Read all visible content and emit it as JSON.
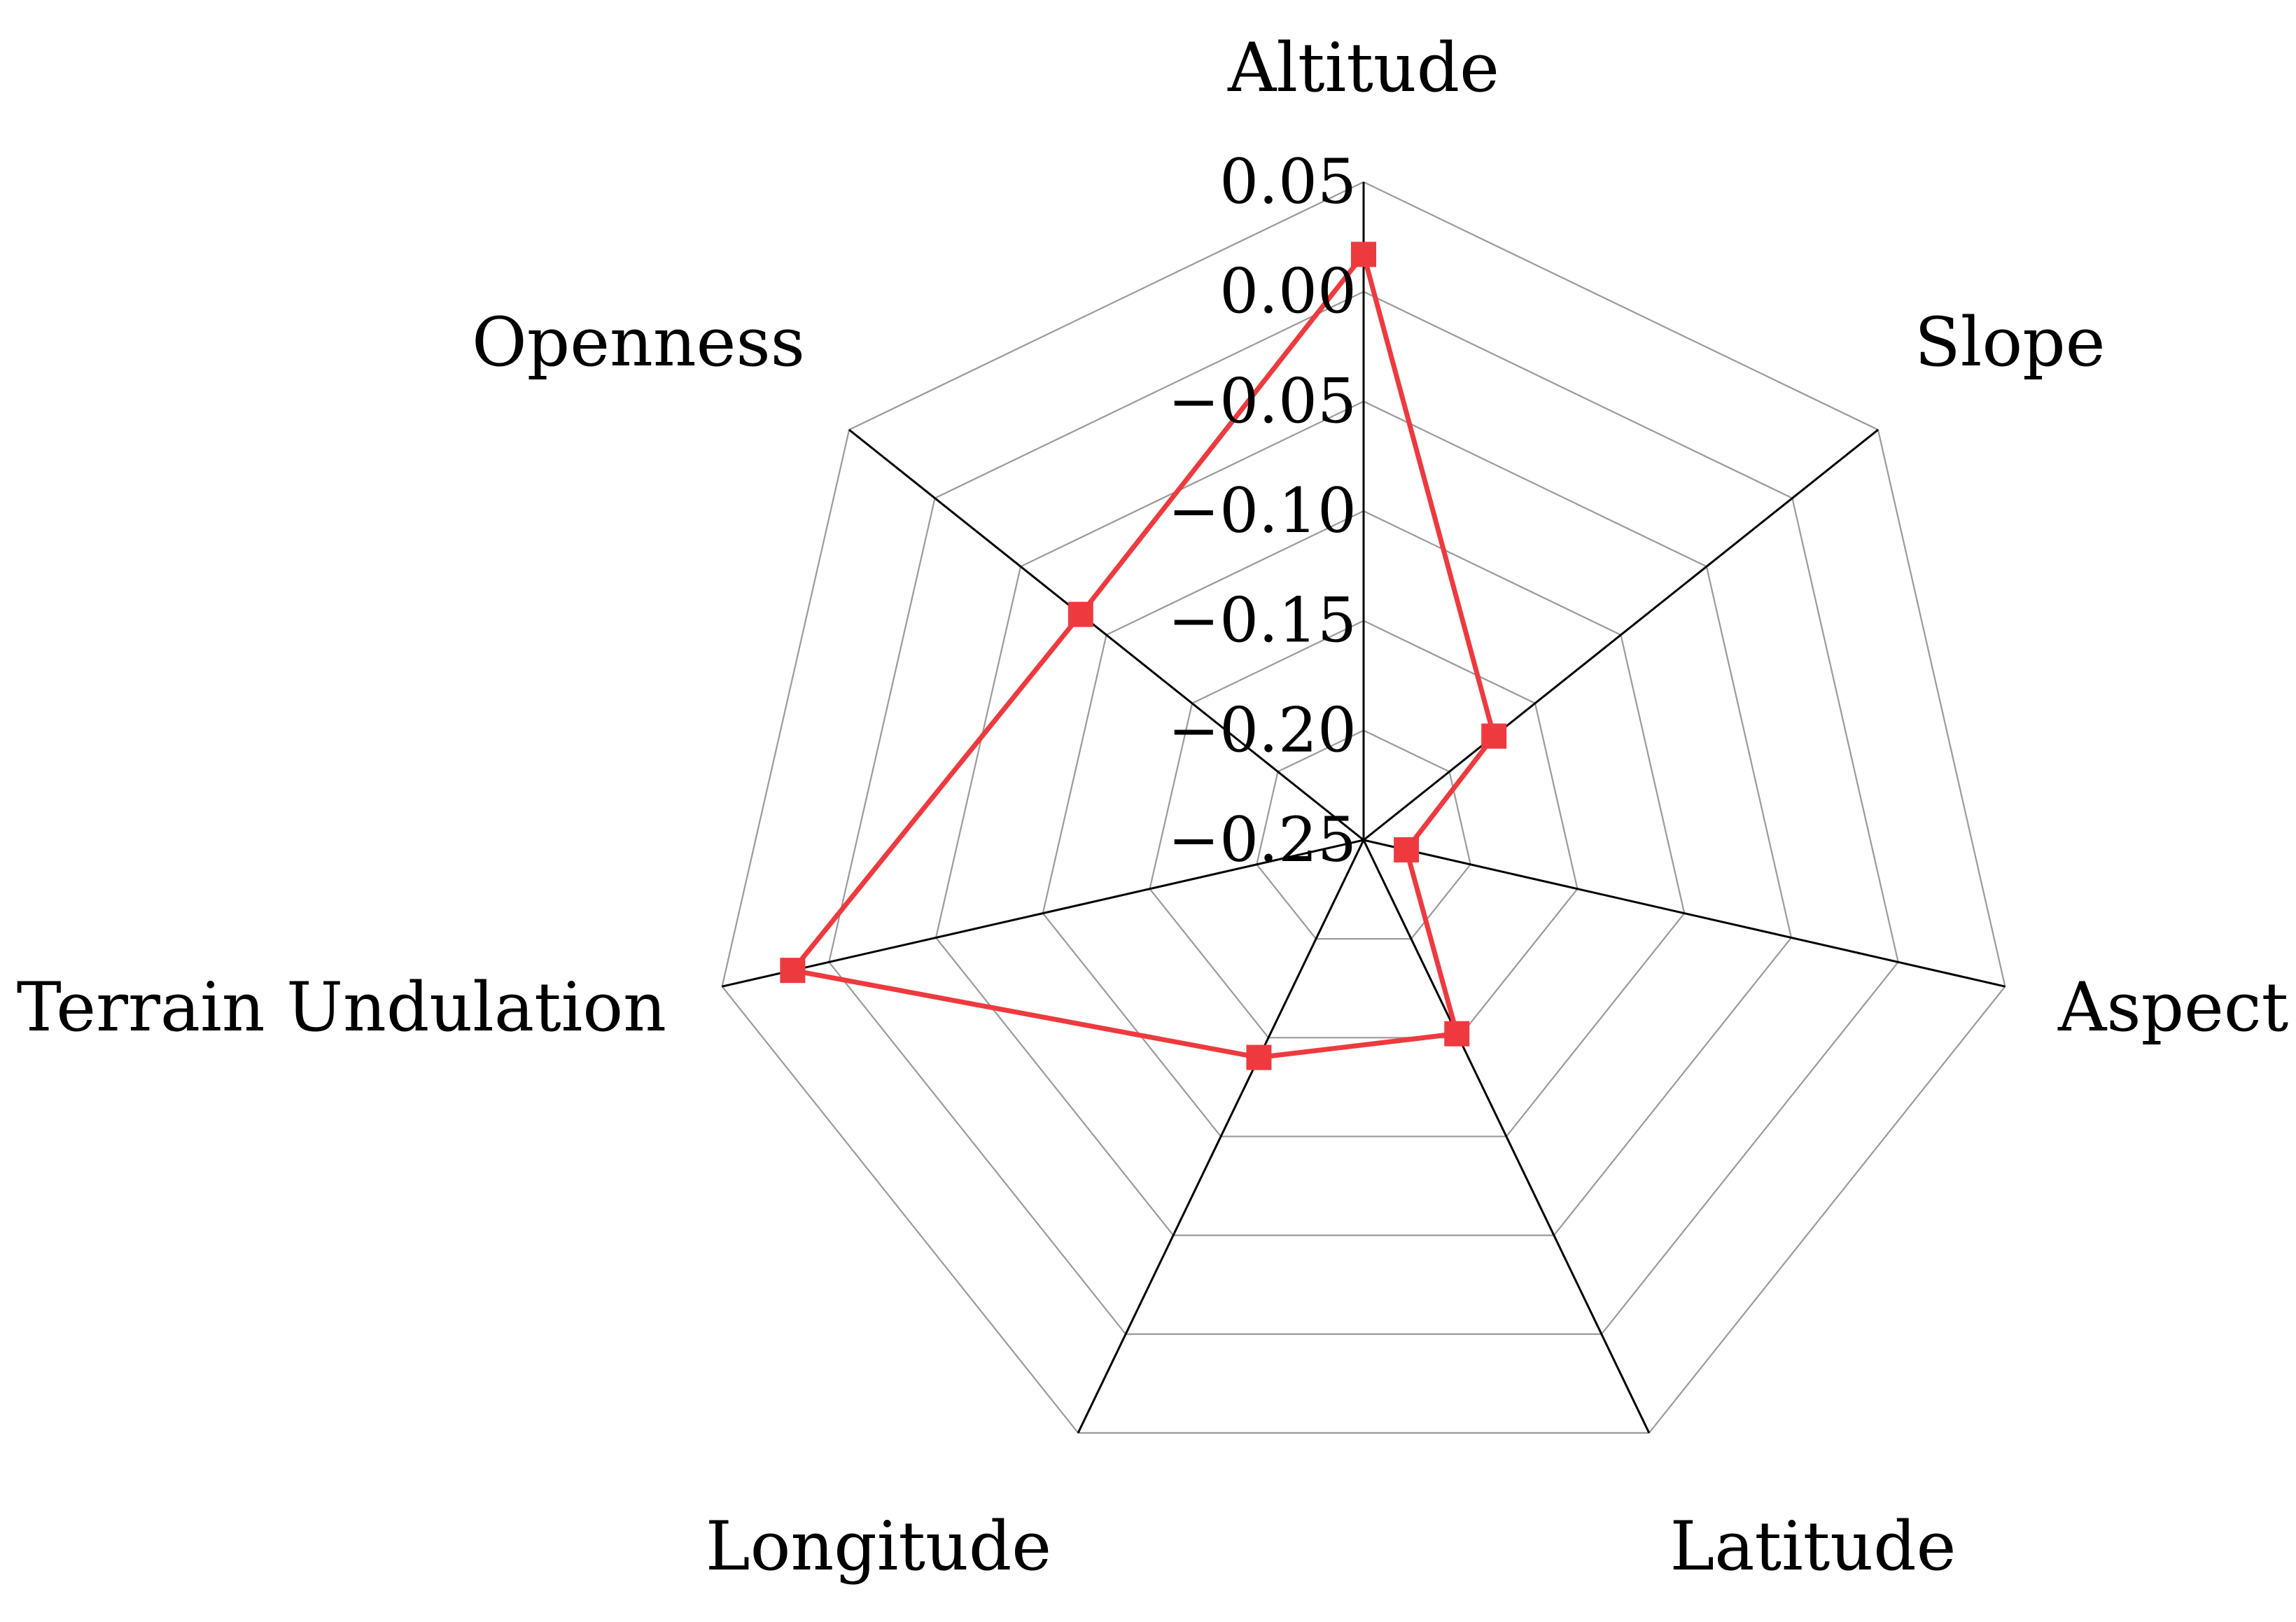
{
  "chart_data": {
    "type": "radar",
    "axes": [
      "Altitude",
      "Slope",
      "Aspect",
      "Latitude",
      "Longitude",
      "Terrain Undulation",
      "Openness"
    ],
    "series": [
      {
        "values": [
          0.017,
          -0.174,
          -0.23,
          -0.152,
          -0.14,
          0.017,
          -0.085
        ],
        "color": "#ee3a3f"
      }
    ],
    "rlim": [
      -0.25,
      0.05
    ],
    "ticks": [
      0.05,
      0.0,
      -0.05,
      -0.1,
      -0.15,
      -0.2,
      -0.25
    ],
    "tick_labels": [
      "0.05",
      "0.00",
      "−0.05",
      "−0.10",
      "−0.15",
      "−0.20",
      "−0.25"
    ],
    "grid": true,
    "grid_color": "#9a9a9a",
    "spoke_color": "#000000",
    "marker": "square"
  }
}
